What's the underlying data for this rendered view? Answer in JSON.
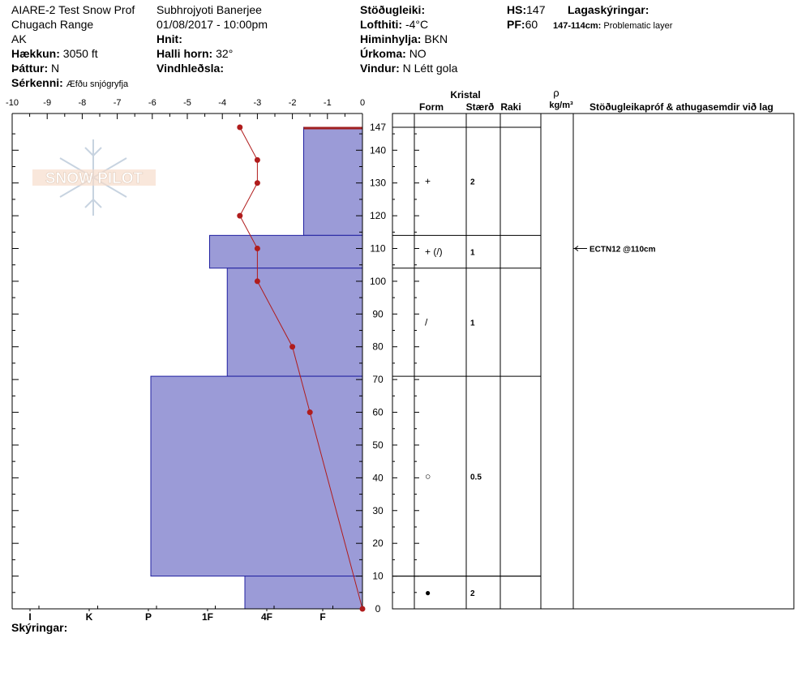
{
  "header": {
    "col1": {
      "line1": "AIARE-2 Test Snow Prof",
      "line2": "Chugach Range",
      "line3": "AK",
      "elevation_label": "Hækkun:",
      "elevation_value": "3050 ft",
      "aspect_label": "Þáttur:",
      "aspect_value": "N",
      "features_label": "Sérkenni:",
      "features_value": "Æfðu snjógryfja"
    },
    "col2": {
      "observer": "Subhrojyoti Banerjee",
      "datetime": "01/08/2017 - 10:00pm",
      "coords_label": "Hnit:",
      "slope_label": "Halli horn:",
      "slope_value": "32°",
      "wind_loading_label": "Vindhleðsla:"
    },
    "col3": {
      "stability_label": "Stöðugleiki:",
      "air_temp_label": "Lofthiti:",
      "air_temp_value": "-4°C",
      "sky_label": "Himinhylja:",
      "sky_value": "BKN",
      "precip_label": "Úrkoma:",
      "precip_value": "NO",
      "wind_label": "Vindur:",
      "wind_value": "N Létt gola"
    },
    "col4": {
      "hs_label": "HS:",
      "hs_value": "147",
      "pf_label": "PF:",
      "pf_value": "60",
      "legend_label": "Lagaskýringar:",
      "layer_range": "147-114cm:",
      "layer_desc": "Problematic layer"
    }
  },
  "footer": {
    "notes_label": "Skýringar:"
  },
  "logo": {
    "text": "SNOW PILOT"
  },
  "columns": {
    "crystal": "Kristal",
    "form": "Form",
    "size": "Stærð",
    "moisture": "Raki",
    "rho": "ρ",
    "density_unit": "kg/m³",
    "tests": "Stöðugleikapróf & athugasemdir við lag"
  },
  "colors": {
    "hardness_fill": "#9b9bd7",
    "hardness_stroke": "#2020a0",
    "temp_line": "#b01c1c",
    "problem_layer": "#a02020"
  },
  "chart_data": {
    "type": "snow_profile",
    "temp_axis": {
      "min": -10,
      "max": 0,
      "ticks": [
        "-10",
        "-9",
        "-8",
        "-7",
        "-6",
        "-5",
        "-4",
        "-3",
        "-2",
        "-1",
        "0"
      ]
    },
    "height_axis": {
      "min": 0,
      "max": 147,
      "ticks": [
        "0",
        "10",
        "20",
        "30",
        "40",
        "50",
        "60",
        "70",
        "80",
        "90",
        "100",
        "110",
        "120",
        "130",
        "140",
        "147"
      ]
    },
    "hardness_axis": {
      "labels": [
        "I",
        "K",
        "P",
        "1F",
        "4F",
        "F"
      ],
      "scale_ticks": [
        "F",
        "4F",
        "1F",
        "P",
        "K",
        "I"
      ]
    },
    "layers": [
      {
        "top": 147,
        "bottom": 114,
        "hardness": 1.0,
        "grain_form": "+",
        "grain_size": "2"
      },
      {
        "top": 114,
        "bottom": 104,
        "hardness": 2.6,
        "grain_form": "+ (/)",
        "grain_size": "1"
      },
      {
        "top": 104,
        "bottom": 71,
        "hardness": 2.3,
        "grain_form": "/",
        "grain_size": "1"
      },
      {
        "top": 71,
        "bottom": 10,
        "hardness": 3.6,
        "grain_form": "○",
        "grain_size": "0.5"
      },
      {
        "top": 10,
        "bottom": 0,
        "hardness": 2.0,
        "grain_form": "●",
        "grain_size": "2"
      }
    ],
    "temperature_profile": [
      {
        "depth": 147,
        "temp": -3.5
      },
      {
        "depth": 137,
        "temp": -3.0
      },
      {
        "depth": 130,
        "temp": -3.0
      },
      {
        "depth": 120,
        "temp": -3.5
      },
      {
        "depth": 110,
        "temp": -3.0
      },
      {
        "depth": 100,
        "temp": -3.0
      },
      {
        "depth": 80,
        "temp": -2.0
      },
      {
        "depth": 60,
        "temp": -1.5
      },
      {
        "depth": 0,
        "temp": 0.0
      }
    ],
    "stability_tests": [
      {
        "depth": 110,
        "label": "ECTN12 @110cm"
      }
    ]
  }
}
